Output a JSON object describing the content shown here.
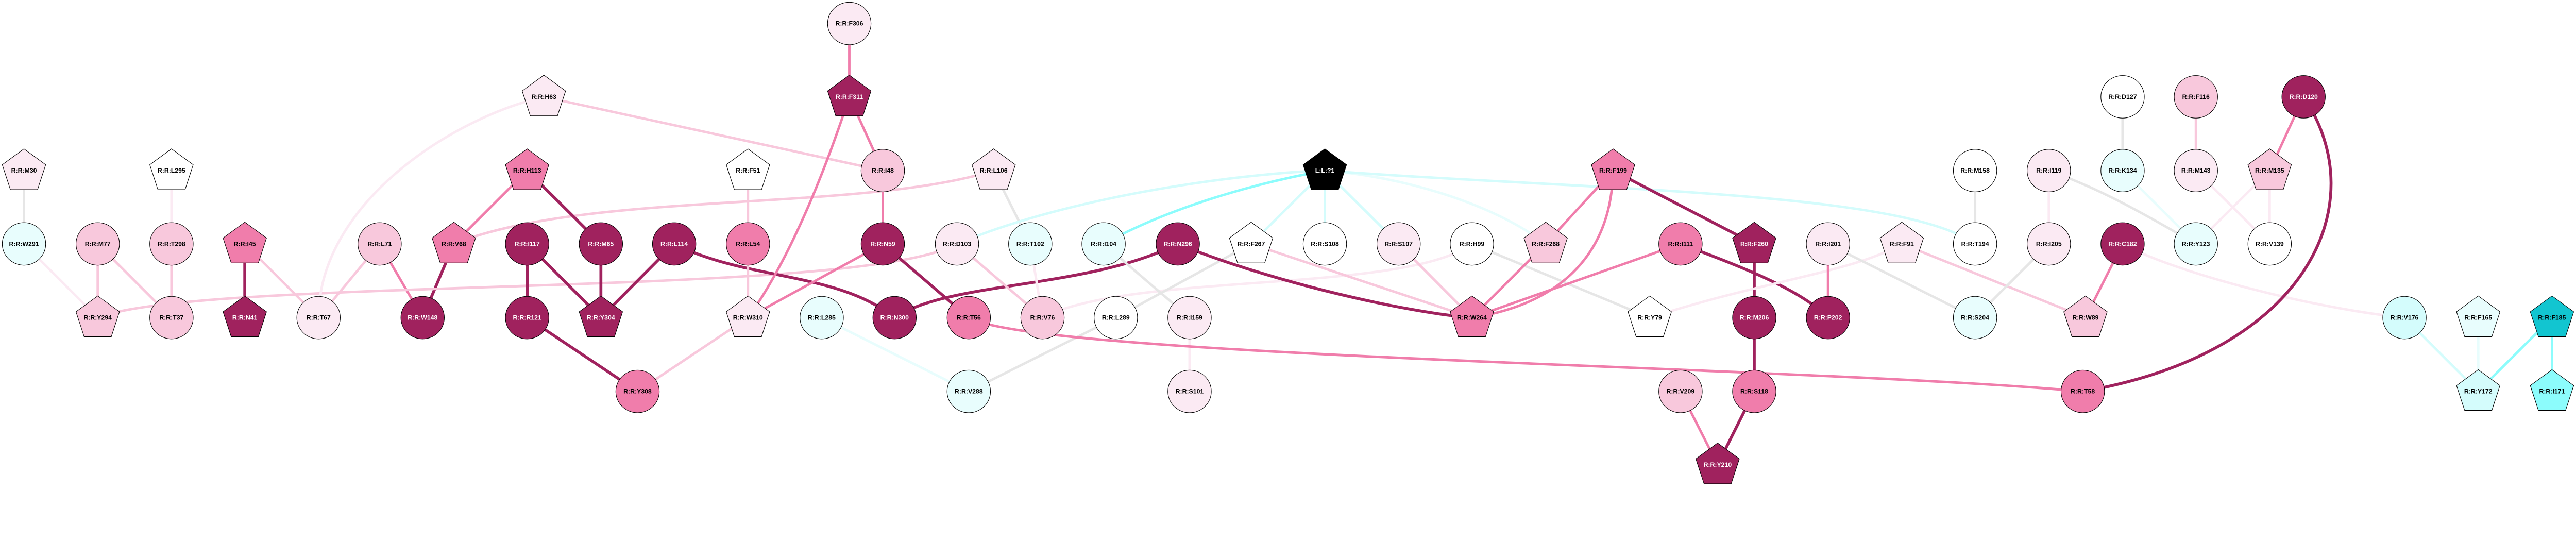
{
  "palette": {
    "dark": "#a0225e",
    "mid": "#f07dab",
    "pink": "#f8c8dc",
    "vlight": "#fbeaf3",
    "white": "#ffffff",
    "gray": "#e6e6e6",
    "cyan_vlight": "#e8fdfd",
    "cyan_light": "#d4fcfc",
    "cyan_mid": "#8cfcfc",
    "teal": "#12c5d0",
    "ligand": "#000000"
  },
  "nodes": [
    {
      "id": "M30",
      "label": "R:R:M30",
      "shape": "pentagon",
      "fill": "vlight"
    },
    {
      "id": "L295",
      "label": "R:R:L295",
      "shape": "pentagon",
      "fill": "white"
    },
    {
      "id": "W291",
      "label": "R:R:W291",
      "shape": "circle",
      "fill": "cyan_vlight"
    },
    {
      "id": "M77",
      "label": "R:R:M77",
      "shape": "circle",
      "fill": "pink"
    },
    {
      "id": "T298",
      "label": "R:R:T298",
      "shape": "circle",
      "fill": "pink"
    },
    {
      "id": "I45",
      "label": "R:R:I45",
      "shape": "pentagon",
      "fill": "mid"
    },
    {
      "id": "L71",
      "label": "R:R:L71",
      "shape": "circle",
      "fill": "pink"
    },
    {
      "id": "Y294",
      "label": "R:R:Y294",
      "shape": "pentagon",
      "fill": "pink"
    },
    {
      "id": "T37",
      "label": "R:R:T37",
      "shape": "circle",
      "fill": "pink"
    },
    {
      "id": "N41",
      "label": "R:R:N41",
      "shape": "pentagon",
      "fill": "dark"
    },
    {
      "id": "T67",
      "label": "R:R:T67",
      "shape": "circle",
      "fill": "vlight"
    },
    {
      "id": "W148",
      "label": "R:R:W148",
      "shape": "circle",
      "fill": "dark"
    },
    {
      "id": "F306",
      "label": "R:R:F306",
      "shape": "circle",
      "fill": "vlight"
    },
    {
      "id": "H63",
      "label": "R:R:H63",
      "shape": "pentagon",
      "fill": "vlight"
    },
    {
      "id": "F311",
      "label": "R:R:F311",
      "shape": "pentagon",
      "fill": "dark"
    },
    {
      "id": "H113",
      "label": "R:R:H113",
      "shape": "pentagon",
      "fill": "mid"
    },
    {
      "id": "F51",
      "label": "R:R:F51",
      "shape": "pentagon",
      "fill": "white"
    },
    {
      "id": "I48",
      "label": "R:R:I48",
      "shape": "circle",
      "fill": "pink"
    },
    {
      "id": "V68",
      "label": "R:R:V68",
      "shape": "pentagon",
      "fill": "mid"
    },
    {
      "id": "I117",
      "label": "R:R:I117",
      "shape": "circle",
      "fill": "dark"
    },
    {
      "id": "M65",
      "label": "R:R:M65",
      "shape": "circle",
      "fill": "dark"
    },
    {
      "id": "L114",
      "label": "R:R:L114",
      "shape": "circle",
      "fill": "dark"
    },
    {
      "id": "L54",
      "label": "R:R:L54",
      "shape": "circle",
      "fill": "mid"
    },
    {
      "id": "N59",
      "label": "R:R:N59",
      "shape": "circle",
      "fill": "dark"
    },
    {
      "id": "R121",
      "label": "R:R:R121",
      "shape": "circle",
      "fill": "dark"
    },
    {
      "id": "Y304",
      "label": "R:R:Y304",
      "shape": "pentagon",
      "fill": "dark"
    },
    {
      "id": "W310",
      "label": "R:R:W310",
      "shape": "pentagon",
      "fill": "vlight"
    },
    {
      "id": "L285",
      "label": "R:R:L285",
      "shape": "circle",
      "fill": "cyan_vlight"
    },
    {
      "id": "N300",
      "label": "R:R:N300",
      "shape": "circle",
      "fill": "dark"
    },
    {
      "id": "Y308",
      "label": "R:R:Y308",
      "shape": "circle",
      "fill": "mid"
    },
    {
      "id": "L106",
      "label": "R:R:L106",
      "shape": "pentagon",
      "fill": "vlight"
    },
    {
      "id": "L1",
      "label": "L:L:?1",
      "shape": "pentagon",
      "fill": "ligand"
    },
    {
      "id": "D103",
      "label": "R:R:D103",
      "shape": "circle",
      "fill": "vlight"
    },
    {
      "id": "T102",
      "label": "R:R:T102",
      "shape": "circle",
      "fill": "cyan_vlight"
    },
    {
      "id": "I104",
      "label": "R:R:I104",
      "shape": "circle",
      "fill": "cyan_vlight"
    },
    {
      "id": "N296",
      "label": "R:R:N296",
      "shape": "circle",
      "fill": "dark"
    },
    {
      "id": "F267",
      "label": "R:R:F267",
      "shape": "pentagon",
      "fill": "white"
    },
    {
      "id": "S108",
      "label": "R:R:S108",
      "shape": "circle",
      "fill": "white"
    },
    {
      "id": "T56",
      "label": "R:R:T56",
      "shape": "circle",
      "fill": "mid"
    },
    {
      "id": "V76",
      "label": "R:R:V76",
      "shape": "circle",
      "fill": "pink"
    },
    {
      "id": "L289",
      "label": "R:R:L289",
      "shape": "circle",
      "fill": "white"
    },
    {
      "id": "I159",
      "label": "R:R:I159",
      "shape": "circle",
      "fill": "vlight"
    },
    {
      "id": "V288",
      "label": "R:R:V288",
      "shape": "circle",
      "fill": "cyan_vlight"
    },
    {
      "id": "S101",
      "label": "R:R:S101",
      "shape": "circle",
      "fill": "vlight"
    },
    {
      "id": "F199",
      "label": "R:R:F199",
      "shape": "pentagon",
      "fill": "mid"
    },
    {
      "id": "S107",
      "label": "R:R:S107",
      "shape": "circle",
      "fill": "vlight"
    },
    {
      "id": "H99",
      "label": "R:R:H99",
      "shape": "circle",
      "fill": "white"
    },
    {
      "id": "F268",
      "label": "R:R:F268",
      "shape": "pentagon",
      "fill": "pink"
    },
    {
      "id": "I111",
      "label": "R:R:I111",
      "shape": "circle",
      "fill": "mid"
    },
    {
      "id": "F260",
      "label": "R:R:F260",
      "shape": "pentagon",
      "fill": "dark"
    },
    {
      "id": "W264",
      "label": "R:R:W264",
      "shape": "pentagon",
      "fill": "mid"
    },
    {
      "id": "Y79",
      "label": "R:R:Y79",
      "shape": "pentagon",
      "fill": "white"
    },
    {
      "id": "M206",
      "label": "R:R:M206",
      "shape": "circle",
      "fill": "dark"
    },
    {
      "id": "V209",
      "label": "R:R:V209",
      "shape": "circle",
      "fill": "pink"
    },
    {
      "id": "S118",
      "label": "R:R:S118",
      "shape": "circle",
      "fill": "mid"
    },
    {
      "id": "Y210",
      "label": "R:R:Y210",
      "shape": "pentagon",
      "fill": "dark"
    },
    {
      "id": "D127",
      "label": "R:R:D127",
      "shape": "circle",
      "fill": "white"
    },
    {
      "id": "F116",
      "label": "R:R:F116",
      "shape": "circle",
      "fill": "pink"
    },
    {
      "id": "M158",
      "label": "R:R:M158",
      "shape": "circle",
      "fill": "white"
    },
    {
      "id": "I119",
      "label": "R:R:I119",
      "shape": "circle",
      "fill": "vlight"
    },
    {
      "id": "K134",
      "label": "R:R:K134",
      "shape": "circle",
      "fill": "cyan_vlight"
    },
    {
      "id": "M143",
      "label": "R:R:M143",
      "shape": "circle",
      "fill": "vlight"
    },
    {
      "id": "I201",
      "label": "R:R:I201",
      "shape": "circle",
      "fill": "vlight"
    },
    {
      "id": "F91",
      "label": "R:R:F91",
      "shape": "pentagon",
      "fill": "vlight"
    },
    {
      "id": "T194",
      "label": "R:R:T194",
      "shape": "circle",
      "fill": "white"
    },
    {
      "id": "I205",
      "label": "R:R:I205",
      "shape": "circle",
      "fill": "vlight"
    },
    {
      "id": "C182",
      "label": "R:R:C182",
      "shape": "circle",
      "fill": "dark"
    },
    {
      "id": "Y123",
      "label": "R:R:Y123",
      "shape": "circle",
      "fill": "cyan_vlight"
    },
    {
      "id": "P202",
      "label": "R:R:P202",
      "shape": "circle",
      "fill": "dark"
    },
    {
      "id": "S204",
      "label": "R:R:S204",
      "shape": "circle",
      "fill": "cyan_vlight"
    },
    {
      "id": "W89",
      "label": "R:R:W89",
      "shape": "pentagon",
      "fill": "pink"
    },
    {
      "id": "T58",
      "label": "R:R:T58",
      "shape": "circle",
      "fill": "mid"
    },
    {
      "id": "D120",
      "label": "R:R:D120",
      "shape": "circle",
      "fill": "dark"
    },
    {
      "id": "M135",
      "label": "R:R:M135",
      "shape": "pentagon",
      "fill": "pink"
    },
    {
      "id": "V139",
      "label": "R:R:V139",
      "shape": "circle",
      "fill": "white"
    },
    {
      "id": "V176",
      "label": "R:R:V176",
      "shape": "circle",
      "fill": "cyan_light"
    },
    {
      "id": "F165",
      "label": "R:R:F165",
      "shape": "pentagon",
      "fill": "cyan_vlight"
    },
    {
      "id": "F185",
      "label": "R:R:F185",
      "shape": "pentagon",
      "fill": "teal"
    },
    {
      "id": "Y172",
      "label": "R:R:Y172",
      "shape": "pentagon",
      "fill": "cyan_light"
    },
    {
      "id": "I171",
      "label": "R:R:I171",
      "shape": "pentagon",
      "fill": "cyan_mid"
    }
  ],
  "edges": [
    [
      "M30",
      "W291",
      "gray"
    ],
    [
      "L295",
      "T298",
      "vlight"
    ],
    [
      "W291",
      "Y294",
      "vlight"
    ],
    [
      "M77",
      "Y294",
      "pink"
    ],
    [
      "M77",
      "T37",
      "pink"
    ],
    [
      "T298",
      "T37",
      "pink"
    ],
    [
      "I45",
      "N41",
      "dark"
    ],
    [
      "I45",
      "T67",
      "pink"
    ],
    [
      "L71",
      "T67",
      "pink"
    ],
    [
      "L71",
      "W148",
      "mid"
    ],
    [
      "V68",
      "W148",
      "dark"
    ],
    [
      "Y294",
      "D103",
      "pink"
    ],
    [
      "V68",
      "L106",
      "pink"
    ],
    [
      "T67",
      "H63",
      "vlight"
    ],
    [
      "H63",
      "I48",
      "pink"
    ],
    [
      "H113",
      "V68",
      "mid"
    ],
    [
      "H113",
      "M65",
      "dark"
    ],
    [
      "I117",
      "R121",
      "dark"
    ],
    [
      "I117",
      "Y304",
      "dark"
    ],
    [
      "M65",
      "Y304",
      "dark"
    ],
    [
      "L114",
      "Y304",
      "dark"
    ],
    [
      "L114",
      "N300",
      "dark"
    ],
    [
      "F51",
      "L54",
      "pink"
    ],
    [
      "L54",
      "W310",
      "pink"
    ],
    [
      "F306",
      "F311",
      "mid"
    ],
    [
      "F311",
      "I48",
      "mid"
    ],
    [
      "F311",
      "W310",
      "mid"
    ],
    [
      "I48",
      "N59",
      "mid"
    ],
    [
      "N59",
      "W310",
      "mid"
    ],
    [
      "N59",
      "T56",
      "dark"
    ],
    [
      "W310",
      "Y308",
      "pink"
    ],
    [
      "R121",
      "Y308",
      "dark"
    ],
    [
      "L285",
      "V288",
      "cyan_vlight"
    ],
    [
      "N300",
      "N296",
      "dark"
    ],
    [
      "D103",
      "V76",
      "pink"
    ],
    [
      "L106",
      "T102",
      "gray"
    ],
    [
      "T102",
      "V76",
      "vlight"
    ],
    [
      "V76",
      "H99",
      "vlight"
    ],
    [
      "D103",
      "L1",
      "cyan_light"
    ],
    [
      "I104",
      "L1",
      "cyan_mid"
    ],
    [
      "I104",
      "I159",
      "gray"
    ],
    [
      "F267",
      "L289",
      "gray"
    ],
    [
      "L289",
      "V288",
      "gray"
    ],
    [
      "I159",
      "S101",
      "vlight"
    ],
    [
      "T56",
      "T58",
      "mid"
    ],
    [
      "N296",
      "W264",
      "dark"
    ],
    [
      "F267",
      "W264",
      "pink"
    ],
    [
      "L1",
      "F267",
      "cyan_light"
    ],
    [
      "L1",
      "S108",
      "cyan_light"
    ],
    [
      "L1",
      "S107",
      "cyan_light"
    ],
    [
      "L1",
      "F268",
      "cyan_vlight"
    ],
    [
      "L1",
      "T194",
      "cyan_light"
    ],
    [
      "S107",
      "W264",
      "pink"
    ],
    [
      "H99",
      "Y79",
      "gray"
    ],
    [
      "F268",
      "W264",
      "mid"
    ],
    [
      "F199",
      "F268",
      "mid"
    ],
    [
      "F199",
      "W264",
      "mid"
    ],
    [
      "F199",
      "F260",
      "dark"
    ],
    [
      "I111",
      "W264",
      "mid"
    ],
    [
      "I111",
      "P202",
      "dark"
    ],
    [
      "F260",
      "M206",
      "dark"
    ],
    [
      "M206",
      "S118",
      "dark"
    ],
    [
      "Y79",
      "F91",
      "vlight"
    ],
    [
      "V209",
      "Y210",
      "mid"
    ],
    [
      "S118",
      "Y210",
      "dark"
    ],
    [
      "I201",
      "P202",
      "mid"
    ],
    [
      "I201",
      "S204",
      "gray"
    ],
    [
      "F91",
      "W89",
      "pink"
    ],
    [
      "M158",
      "T194",
      "gray"
    ],
    [
      "I119",
      "I205",
      "vlight"
    ],
    [
      "I119",
      "Y123",
      "gray"
    ],
    [
      "I205",
      "S204",
      "gray"
    ],
    [
      "D127",
      "K134",
      "gray"
    ],
    [
      "K134",
      "Y123",
      "cyan_vlight"
    ],
    [
      "F116",
      "M143",
      "pink"
    ],
    [
      "M143",
      "V139",
      "vlight"
    ],
    [
      "M135",
      "Y123",
      "vlight"
    ],
    [
      "C182",
      "W89",
      "mid"
    ],
    [
      "C182",
      "V176",
      "vlight"
    ],
    [
      "D120",
      "M135",
      "mid"
    ],
    [
      "D120",
      "T58",
      "dark"
    ],
    [
      "M135",
      "V139",
      "vlight"
    ],
    [
      "V176",
      "Y172",
      "cyan_light"
    ],
    [
      "F165",
      "Y172",
      "cyan_vlight"
    ],
    [
      "F185",
      "Y172",
      "cyan_mid"
    ],
    [
      "F185",
      "I171",
      "cyan_mid"
    ]
  ]
}
